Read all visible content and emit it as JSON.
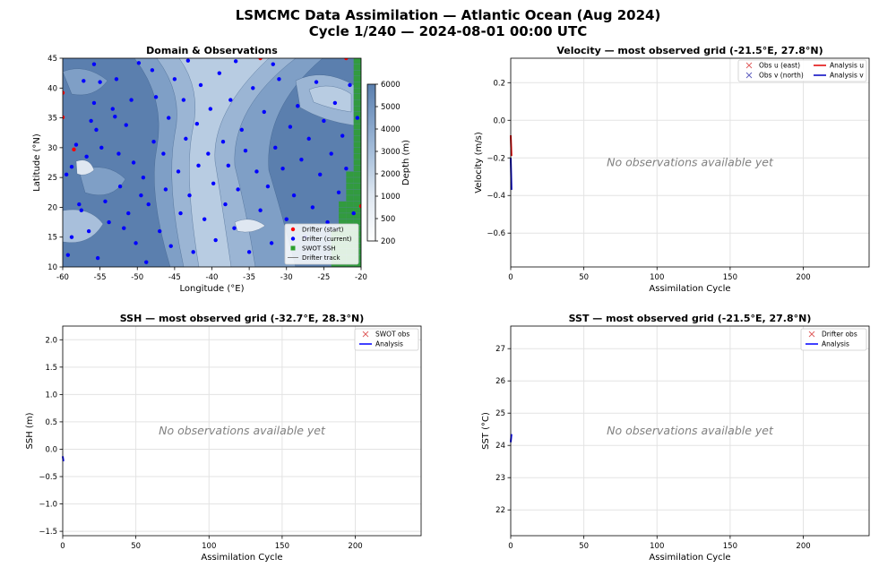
{
  "figure": {
    "title_line1": "LSMCMC Data Assimilation — Atlantic Ocean (Aug 2024)",
    "title_line2": "Cycle 1/240 — 2024-08-01 00:00 UTC"
  },
  "colors": {
    "drifter_start": "#ff0000",
    "drifter_current": "#0000ff",
    "swot": "#2ca02c",
    "track": "#808080",
    "obs_u": "#e06060",
    "obs_v": "#6060c0",
    "analysis_u": "#e00000",
    "analysis_v": "#0000c0",
    "analysis": "#0000ff",
    "bathy_deep": "#5b7fae",
    "bathy_shallow": "#e8eef6"
  },
  "chart_data": [
    {
      "id": "map",
      "type": "scatter",
      "title": "Domain & Observations",
      "xlabel": "Longitude ($^\\circ$E)",
      "ylabel": "Latitude ($^\\circ$N)",
      "xlim": [
        -60,
        -20
      ],
      "ylim": [
        10,
        45
      ],
      "xticks": [
        -60,
        -55,
        -50,
        -45,
        -40,
        -35,
        -30,
        -25,
        -20
      ],
      "yticks": [
        10,
        15,
        20,
        25,
        30,
        35,
        40,
        45
      ],
      "colorbar": {
        "label": "Depth (m)",
        "ticks": [
          200,
          500,
          1000,
          2000,
          3000,
          4000,
          5000,
          6000
        ]
      },
      "legend": {
        "placement": "lower-right",
        "entries": [
          "Drifter (start)",
          "Drifter (current)",
          "SWOT SSH",
          "Drifter track"
        ]
      },
      "drifter_start": [
        [
          -60,
          39.2
        ],
        [
          -60,
          35.1
        ],
        [
          -58.5,
          29.7
        ],
        [
          -33.5,
          45
        ],
        [
          -22,
          45
        ],
        [
          -20,
          20.2
        ]
      ],
      "drifter_current": [
        [
          -59.5,
          25.5
        ],
        [
          -59.3,
          12.0
        ],
        [
          -58.8,
          26.8
        ],
        [
          -58.2,
          30.5
        ],
        [
          -57.8,
          20.5
        ],
        [
          -57.5,
          19.5
        ],
        [
          -57.2,
          41.2
        ],
        [
          -56.8,
          28.5
        ],
        [
          -56.5,
          16.0
        ],
        [
          -56.2,
          34.5
        ],
        [
          -55.8,
          37.5
        ],
        [
          -55.5,
          33.0
        ],
        [
          -55.3,
          11.5
        ],
        [
          -55.0,
          41.0
        ],
        [
          -54.8,
          30.0
        ],
        [
          -54.3,
          21.0
        ],
        [
          -53.8,
          17.5
        ],
        [
          -53.3,
          36.5
        ],
        [
          -53.0,
          35.2
        ],
        [
          -52.8,
          41.5
        ],
        [
          -52.5,
          29.0
        ],
        [
          -52.3,
          23.5
        ],
        [
          -51.8,
          16.5
        ],
        [
          -51.5,
          33.8
        ],
        [
          -51.2,
          19.0
        ],
        [
          -50.8,
          38.0
        ],
        [
          -50.5,
          27.5
        ],
        [
          -50.2,
          14.0
        ],
        [
          -49.8,
          44.2
        ],
        [
          -49.5,
          22.0
        ],
        [
          -49.2,
          25.0
        ],
        [
          -48.8,
          10.8
        ],
        [
          -48.5,
          20.5
        ],
        [
          -48.0,
          43.0
        ],
        [
          -47.8,
          31.0
        ],
        [
          -47.5,
          38.5
        ],
        [
          -47.0,
          16.0
        ],
        [
          -46.5,
          29.0
        ],
        [
          -46.2,
          23.0
        ],
        [
          -45.8,
          35.0
        ],
        [
          -45.5,
          13.5
        ],
        [
          -45.0,
          41.5
        ],
        [
          -44.5,
          26.0
        ],
        [
          -44.2,
          19.0
        ],
        [
          -43.8,
          38.0
        ],
        [
          -43.5,
          31.5
        ],
        [
          -43.0,
          22.0
        ],
        [
          -42.5,
          12.5
        ],
        [
          -42.0,
          34.0
        ],
        [
          -41.8,
          27.0
        ],
        [
          -41.5,
          40.5
        ],
        [
          -41.0,
          18.0
        ],
        [
          -40.5,
          29.0
        ],
        [
          -40.2,
          36.5
        ],
        [
          -39.8,
          24.0
        ],
        [
          -39.5,
          14.5
        ],
        [
          -39.0,
          42.5
        ],
        [
          -38.5,
          31.0
        ],
        [
          -38.2,
          20.5
        ],
        [
          -37.8,
          27.0
        ],
        [
          -37.5,
          38.0
        ],
        [
          -37.0,
          16.5
        ],
        [
          -36.5,
          23.0
        ],
        [
          -36.0,
          33.0
        ],
        [
          -35.5,
          29.5
        ],
        [
          -35.0,
          12.5
        ],
        [
          -34.5,
          40.0
        ],
        [
          -34.0,
          26.0
        ],
        [
          -33.5,
          19.5
        ],
        [
          -33.0,
          36.0
        ],
        [
          -32.5,
          23.5
        ],
        [
          -32.0,
          14.0
        ],
        [
          -31.5,
          30.0
        ],
        [
          -31.0,
          41.5
        ],
        [
          -30.5,
          26.5
        ],
        [
          -30.0,
          18.0
        ],
        [
          -29.5,
          33.5
        ],
        [
          -29.0,
          22.0
        ],
        [
          -28.5,
          37.0
        ],
        [
          -28.0,
          28.0
        ],
        [
          -27.5,
          15.0
        ],
        [
          -27.0,
          31.5
        ],
        [
          -26.5,
          20.0
        ],
        [
          -26.0,
          41.0
        ],
        [
          -25.5,
          25.5
        ],
        [
          -25.0,
          34.5
        ],
        [
          -24.5,
          17.5
        ],
        [
          -24.0,
          29.0
        ],
        [
          -23.5,
          37.5
        ],
        [
          -23.0,
          22.5
        ],
        [
          -22.5,
          32.0
        ],
        [
          -22.0,
          26.5
        ],
        [
          -21.5,
          40.5
        ],
        [
          -21.0,
          19.0
        ],
        [
          -20.5,
          35.0
        ],
        [
          -31.8,
          44.0
        ],
        [
          -36.8,
          44.5
        ],
        [
          -43.2,
          44.6
        ],
        [
          -55.8,
          44.0
        ],
        [
          -58.8,
          15.0
        ]
      ],
      "swot_ssh": {
        "lon_range": [
          -21.0,
          -20.0
        ],
        "lat_range": [
          10,
          45
        ],
        "note_band_lower": [
          [
            -24.0,
            10,
            16
          ],
          [
            -23.0,
            10,
            21
          ],
          [
            -22.0,
            10,
            26
          ]
        ]
      }
    },
    {
      "id": "velocity",
      "type": "line",
      "title": "Velocity — most observed grid (-21.5$^\\circ$E, 27.8$^\\circ$N)",
      "xlabel": "Assimilation Cycle",
      "ylabel": "Velocity (m/s)",
      "xlim": [
        0,
        245
      ],
      "ylim": [
        -0.78,
        0.33
      ],
      "xticks": [
        0,
        50,
        100,
        150,
        200
      ],
      "yticks": [
        -0.6,
        -0.4,
        -0.2,
        0.0,
        0.2
      ],
      "ytick_labels": [
        "−0.6",
        "−0.4",
        "−0.2",
        "0.0",
        "0.2"
      ],
      "annotation": "No observations available yet",
      "legend": {
        "placement": "top-right",
        "entries": [
          "Obs u (east)",
          "Obs v (north)",
          "Analysis u",
          "Analysis v"
        ]
      },
      "series": [
        {
          "name": "Analysis u",
          "x": [
            0,
            0.5
          ],
          "values": [
            -0.08,
            -0.19
          ]
        },
        {
          "name": "Analysis v",
          "x": [
            0,
            0.5
          ],
          "values": [
            -0.2,
            -0.37
          ]
        }
      ]
    },
    {
      "id": "ssh",
      "type": "line",
      "title": "SSH — most observed grid (-32.7$^\\circ$E, 28.3$^\\circ$N)",
      "xlabel": "Assimilation Cycle",
      "ylabel": "SSH (m)",
      "xlim": [
        0,
        245
      ],
      "ylim": [
        -1.58,
        2.25
      ],
      "xticks": [
        0,
        50,
        100,
        150,
        200
      ],
      "yticks": [
        -1.5,
        -1.0,
        -0.5,
        0.0,
        0.5,
        1.0,
        1.5,
        2.0
      ],
      "ytick_labels": [
        "−1.5",
        "−1.0",
        "−0.5",
        "0.0",
        "0.5",
        "1.0",
        "1.5",
        "2.0"
      ],
      "annotation": "No observations available yet",
      "legend": {
        "placement": "top-right",
        "entries": [
          "SWOT obs",
          "Analysis"
        ]
      },
      "series": [
        {
          "name": "Analysis",
          "x": [
            0,
            0.5
          ],
          "values": [
            -0.13,
            -0.22
          ]
        }
      ]
    },
    {
      "id": "sst",
      "type": "line",
      "title": "SST — most observed grid (-21.5$^\\circ$E, 27.8$^\\circ$N)",
      "xlabel": "Assimilation Cycle",
      "ylabel": "SST ($^\\circ$C)",
      "xlim": [
        0,
        245
      ],
      "ylim": [
        21.2,
        27.7
      ],
      "xticks": [
        0,
        50,
        100,
        150,
        200
      ],
      "yticks": [
        22,
        23,
        24,
        25,
        26,
        27
      ],
      "annotation": "No observations available yet",
      "legend": {
        "placement": "top-right",
        "entries": [
          "Drifter obs",
          "Analysis"
        ]
      },
      "series": [
        {
          "name": "Analysis",
          "x": [
            0,
            0.5
          ],
          "values": [
            24.1,
            24.35
          ]
        }
      ]
    }
  ]
}
